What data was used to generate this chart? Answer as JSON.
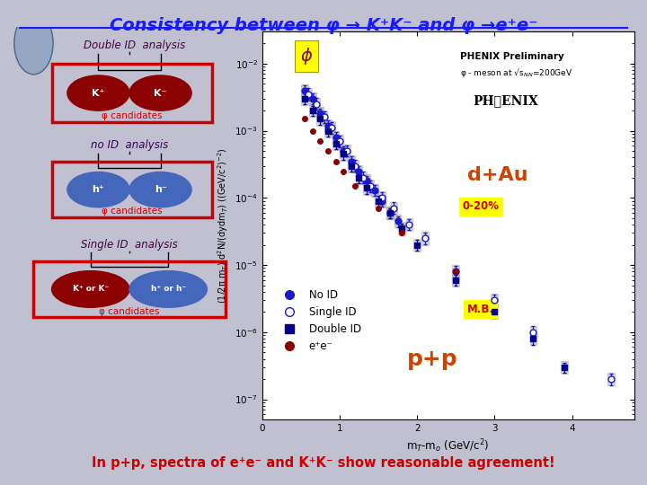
{
  "title": "Consistency between φ → K⁺K⁻ and φ →e⁺e⁻",
  "title_color": "#1a1aff",
  "bg_color": "#c0c0d0",
  "plot_bg_color": "#ffffff",
  "bottom_text": "In p+p, spectra of e⁺e⁻ and K⁺K⁻ show reasonable agreement!",
  "bottom_text_color": "#cc0000",
  "bottom_bg_color": "#d8d8e8",
  "xlabel": "m$_T$-m$_o$ (GeV/c$^2$)",
  "ylabel": "(1/2π m$_T$) d$^2$N/(dydm$_T$) ((GeV/c$^2$)$^{-2}$)",
  "phenix_prelim": "PHENIX Preliminary",
  "phenix_sub": "φ - meson at √s$_{NN}$=200GeV",
  "dAu_text": "d+Au",
  "pp_text": "p+p",
  "phi_label": "φ",
  "annotation_0_20": "0-20%",
  "annotation_MB": "M.B.",
  "double_id_header": "Double ID  analysis",
  "no_id_header": "no ID  analysis",
  "single_id_header": "Single ID  analysis",
  "phi_cand": "φ candidates",
  "legend_no_id": "No ID",
  "legend_single_id": "Single ID",
  "legend_double_id": "Double ID",
  "legend_ee": "e⁺e⁻",
  "no_id_color": "#1a1acc",
  "single_id_color": "#1a1acc",
  "double_id_color": "#00008b",
  "ee_color": "#8b0000",
  "oval_red_color": "#8b0000",
  "oval_blue_color": "#4466bb",
  "box_edge_color": "#cc0000",
  "dAu_color": "#cc4400",
  "pp_color": "#cc4400",
  "yellow": "#ffff00",
  "no_id_x": [
    0.55,
    0.65,
    0.75,
    0.85,
    0.95,
    1.05,
    1.15,
    1.25,
    1.35,
    1.45,
    1.55,
    1.65,
    1.75
  ],
  "no_id_y": [
    0.004,
    0.003,
    0.0018,
    0.0012,
    0.0008,
    0.0005,
    0.00035,
    0.00025,
    0.00018,
    0.00013,
    9e-05,
    6e-05,
    4.5e-05
  ],
  "single_id_x": [
    0.6,
    0.7,
    0.8,
    0.9,
    1.0,
    1.1,
    1.2,
    1.3,
    1.4,
    1.55,
    1.7,
    1.9,
    2.1,
    2.5,
    3.0,
    3.5,
    4.5
  ],
  "single_id_y": [
    0.0035,
    0.0025,
    0.0016,
    0.0011,
    0.0007,
    0.0005,
    0.0003,
    0.0002,
    0.00015,
    0.0001,
    7e-05,
    4e-05,
    2.5e-05,
    8e-06,
    3e-06,
    1e-06,
    2e-07
  ],
  "double_id_x": [
    0.55,
    0.65,
    0.75,
    0.85,
    0.95,
    1.05,
    1.15,
    1.25,
    1.35,
    1.5,
    1.65,
    1.8,
    2.0,
    2.5,
    3.0,
    3.5,
    3.9
  ],
  "double_id_y": [
    0.003,
    0.002,
    0.0015,
    0.001,
    0.00065,
    0.00045,
    0.0003,
    0.0002,
    0.00014,
    9e-05,
    6e-05,
    3.5e-05,
    2e-05,
    6e-06,
    2e-06,
    8e-07,
    3e-07
  ],
  "ee_x": [
    0.55,
    0.65,
    0.75,
    0.85,
    0.95,
    1.05,
    1.2,
    1.5,
    1.8,
    2.5
  ],
  "ee_y": [
    0.0015,
    0.001,
    0.0007,
    0.0005,
    0.00035,
    0.00025,
    0.00015,
    7e-05,
    3e-05,
    8e-06
  ],
  "xlim": [
    0,
    4.8
  ],
  "ylim_low": 5e-08,
  "ylim_high": 0.03
}
